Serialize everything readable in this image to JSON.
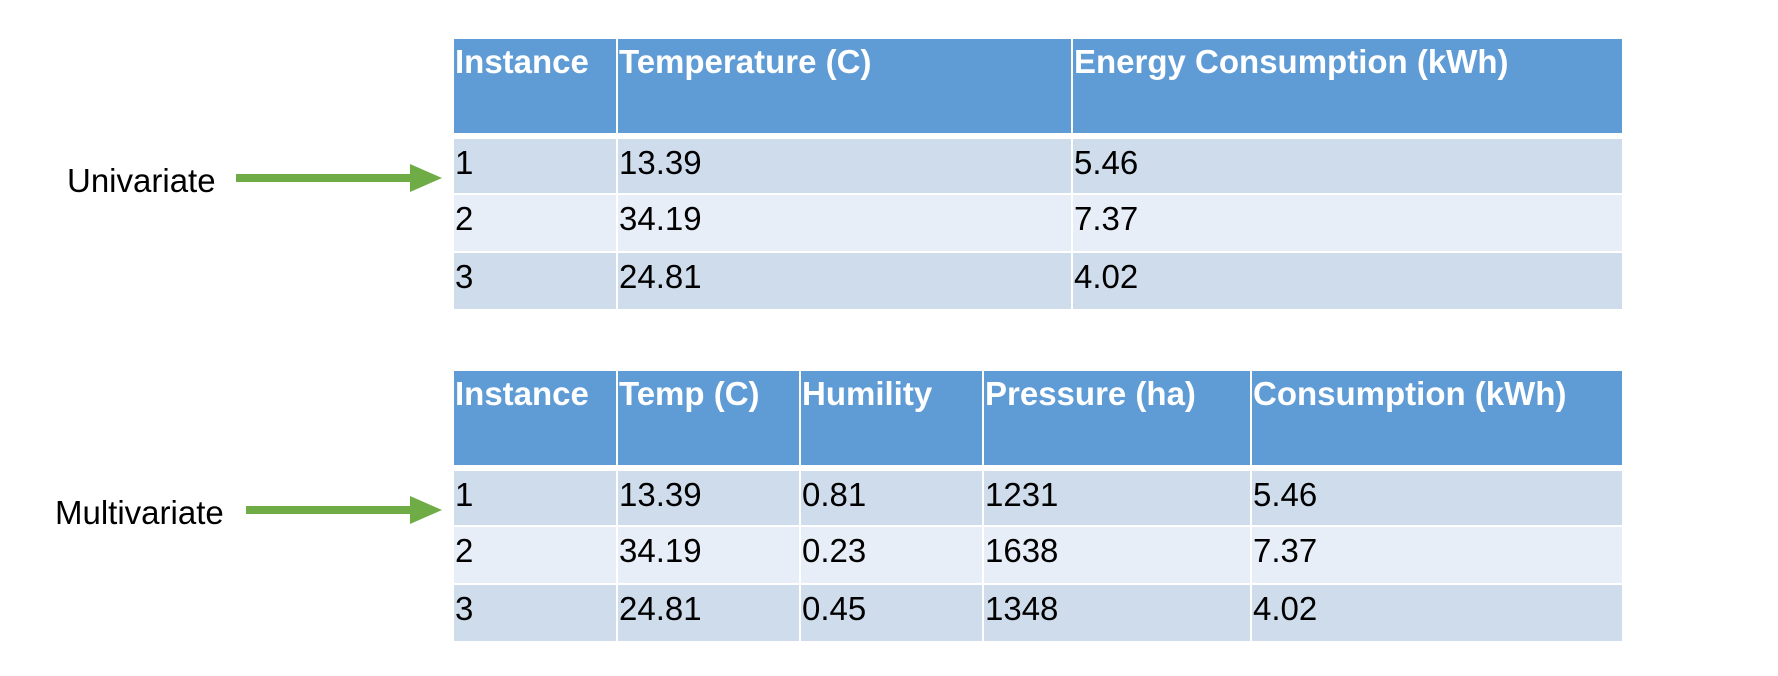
{
  "colors": {
    "header_bg": "#5f9cd5",
    "row_odd": "#cfdcec",
    "row_even": "#e8eef7",
    "arrow": "#6fac46"
  },
  "univariate": {
    "label": "Univariate",
    "columns": [
      "Instance",
      "Temperature (C)",
      "Energy Consumption (kWh)"
    ],
    "rows": [
      [
        "1",
        "13.39",
        "5.46"
      ],
      [
        "2",
        "34.19",
        "7.37"
      ],
      [
        "3",
        "24.81",
        "4.02"
      ]
    ]
  },
  "multivariate": {
    "label": "Multivariate",
    "columns": [
      "Instance",
      "Temp (C)",
      "Humility",
      "Pressure (ha)",
      "Consumption (kWh)"
    ],
    "rows": [
      [
        "1",
        "13.39",
        "0.81",
        "1231",
        "5.46"
      ],
      [
        "2",
        "34.19",
        "0.23",
        "1638",
        "7.37"
      ],
      [
        "3",
        "24.81",
        "0.45",
        "1348",
        "4.02"
      ]
    ]
  }
}
